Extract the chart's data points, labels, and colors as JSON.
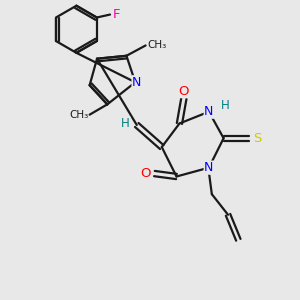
{
  "bg_color": "#e8e8e8",
  "bond_color": "#1a1a1a",
  "atom_colors": {
    "N": "#0000ff",
    "O": "#ff0000",
    "S": "#cccc00",
    "F": "#ff00aa",
    "H": "#008080",
    "C": "#1a1a1a"
  },
  "bond_width": 1.6,
  "figsize": [
    3.0,
    3.0
  ],
  "dpi": 100,
  "xlim": [
    0,
    10
  ],
  "ylim": [
    0,
    10
  ]
}
